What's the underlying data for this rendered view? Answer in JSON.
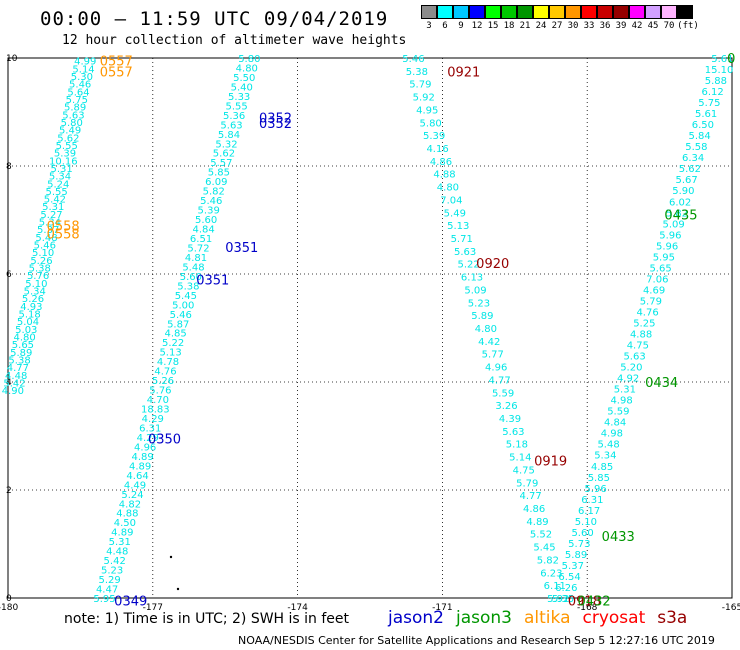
{
  "header": {
    "title": "00:00 – 11:59 UTC 09/04/2019",
    "subtitle": "12 hour collection of altimeter wave heights"
  },
  "colorbar": {
    "labels": [
      "3",
      "6",
      "9",
      "12",
      "15",
      "18",
      "21",
      "24",
      "27",
      "30",
      "33",
      "36",
      "39",
      "42",
      "45",
      "70",
      "(ft)"
    ],
    "colors": [
      "#8c8c8c",
      "#00ffff",
      "#00c8ff",
      "#0000ff",
      "#00ff00",
      "#00c800",
      "#009600",
      "#ffff00",
      "#ffc800",
      "#ff9600",
      "#ff0000",
      "#c80000",
      "#960000",
      "#ff00ff",
      "#d2a0ff",
      "#ffb4ff",
      "#000000"
    ]
  },
  "axes": {
    "x_ticks": [
      "-180",
      "-177",
      "-174",
      "-171",
      "-168",
      "-165"
    ],
    "y_ticks": [
      "0",
      "2",
      "4",
      "6",
      "8",
      "10"
    ]
  },
  "time_labels": [
    {
      "text": "0557",
      "color": "#ff9600",
      "lon": -178.1,
      "lat": 9.95
    },
    {
      "text": "0557",
      "color": "#ff9600",
      "lon": -178.1,
      "lat": 9.75
    },
    {
      "text": "0558",
      "color": "#ff9600",
      "lon": -179.2,
      "lat": 6.9
    },
    {
      "text": "0558",
      "color": "#ff9600",
      "lon": -179.2,
      "lat": 6.75
    },
    {
      "text": "0352",
      "color": "#0000c8",
      "lon": -174.8,
      "lat": 8.9
    },
    {
      "text": "0352",
      "color": "#0000c8",
      "lon": -174.8,
      "lat": 8.8
    },
    {
      "text": "0351",
      "color": "#0000c8",
      "lon": -175.5,
      "lat": 6.5
    },
    {
      "text": "0351",
      "color": "#0000c8",
      "lon": -176.1,
      "lat": 5.9
    },
    {
      "text": "0350",
      "color": "#0000c8",
      "lon": -177.1,
      "lat": 2.95
    },
    {
      "text": "0349",
      "color": "#0000c8",
      "lon": -177.8,
      "lat": -0.05
    },
    {
      "text": "0921",
      "color": "#960000",
      "lon": -170.9,
      "lat": 9.75
    },
    {
      "text": "0920",
      "color": "#960000",
      "lon": -170.3,
      "lat": 6.2
    },
    {
      "text": "0919",
      "color": "#960000",
      "lon": -169.1,
      "lat": 2.55
    },
    {
      "text": "0918",
      "color": "#960000",
      "lon": -168.4,
      "lat": -0.05
    },
    {
      "text": "0435",
      "color": "#009600",
      "lon": -166.4,
      "lat": 7.1
    },
    {
      "text": "0434",
      "color": "#009600",
      "lon": -166.8,
      "lat": 4.0
    },
    {
      "text": "0433",
      "color": "#009600",
      "lon": -167.7,
      "lat": 1.15
    },
    {
      "text": "0432",
      "color": "#009600",
      "lon": -168.2,
      "lat": -0.05
    },
    {
      "text": "0",
      "color": "#009600",
      "lon": -165.1,
      "lat": 10.0
    }
  ],
  "tracks": [
    {
      "name": "altika-1",
      "color": "#00e6e6",
      "lon_start": -179.9,
      "lat_start": 3.85,
      "lon_end": -178.4,
      "lat_end": 9.95,
      "values": [
        "4.90",
        "5.42",
        "4.48",
        "4.77",
        "5.38",
        "5.89",
        "5.65",
        "4.80",
        "5.03",
        "5.04",
        "5.18",
        "4.93",
        "5.26",
        "5.34",
        "5.10",
        "5.76",
        "5.38",
        "5.26",
        "5.10",
        "5.46",
        "5.48",
        "5.37",
        "5.34",
        "5.27",
        "5.31",
        "5.42",
        "5.55",
        "5.24",
        "5.34",
        "5.31",
        "10.16",
        "5.39",
        "5.55",
        "5.62",
        "5.49",
        "5.80",
        "5.63",
        "5.89",
        "5.75",
        "5.64",
        "5.46",
        "5.30",
        "5.14",
        "4.99"
      ]
    },
    {
      "name": "jason2-1",
      "color": "#00e6e6",
      "lon_start": -178.0,
      "lat_start": 0.0,
      "lon_end": -175.0,
      "lat_end": 10.0,
      "values": [
        "5.95",
        "4.47",
        "5.29",
        "5.23",
        "5.42",
        "4.48",
        "5.31",
        "4.89",
        "4.50",
        "4.88",
        "4.82",
        "5.24",
        "4.49",
        "4.64",
        "4.89",
        "4.89",
        "4.96",
        "4.29",
        "6.31",
        "4.29",
        "18.83",
        "4.70",
        "5.76",
        "5.26",
        "4.76",
        "4.78",
        "5.13",
        "5.22",
        "4.85",
        "5.87",
        "5.46",
        "5.00",
        "5.45",
        "5.38",
        "5.60",
        "5.48",
        "4.81",
        "5.72",
        "6.51",
        "4.84",
        "5.60",
        "5.39",
        "5.46",
        "5.82",
        "6.09",
        "5.85",
        "5.57",
        "5.62",
        "5.32",
        "5.84",
        "5.63",
        "5.36",
        "5.55",
        "5.33",
        "5.40",
        "5.50",
        "4.80",
        "5.80"
      ]
    },
    {
      "name": "cryosat-1",
      "color": "#00e6e6",
      "lon_start": -171.6,
      "lat_start": 10.0,
      "lon_end": -168.6,
      "lat_end": 0.0,
      "values": [
        "5.46",
        "5.38",
        "5.79",
        "5.92",
        "4.95",
        "5.80",
        "5.39",
        "4.16",
        "4.86",
        "4.88",
        "4.80",
        "7.04",
        "5.49",
        "5.13",
        "5.71",
        "5.63",
        "5.22",
        "6.13",
        "5.09",
        "5.23",
        "5.89",
        "4.80",
        "4.42",
        "5.77",
        "4.96",
        "4.77",
        "5.59",
        "3.26",
        "4.39",
        "5.63",
        "5.18",
        "5.14",
        "4.75",
        "5.79",
        "4.77",
        "4.86",
        "4.89",
        "5.52",
        "5.45",
        "5.82",
        "6.23",
        "6.11",
        "5.92"
      ]
    },
    {
      "name": "jason3-1",
      "color": "#00e6e6",
      "lon_start": -168.5,
      "lat_start": 0.0,
      "lon_end": -165.2,
      "lat_end": 10.0,
      "values": [
        "5.35",
        "6.26",
        "6.54",
        "5.37",
        "5.89",
        "5.73",
        "5.60",
        "5.10",
        "6.17",
        "6.31",
        "5.96",
        "5.85",
        "4.85",
        "5.34",
        "5.48",
        "4.98",
        "4.84",
        "5.59",
        "4.98",
        "5.31",
        "4.92",
        "5.20",
        "5.63",
        "4.75",
        "4.88",
        "5.25",
        "4.76",
        "5.79",
        "4.69",
        "7.06",
        "5.65",
        "5.95",
        "5.96",
        "5.96",
        "5.09",
        "5.82",
        "6.02",
        "5.90",
        "5.67",
        "5.62",
        "6.34",
        "5.58",
        "5.84",
        "6.50",
        "5.61",
        "5.75",
        "6.12",
        "5.88",
        "15.10",
        "5.61"
      ]
    }
  ],
  "footer": {
    "note": "note: 1) Time is in UTC; 2) SWH is in feet",
    "legend": [
      {
        "label": "jason2",
        "color": "#0000c8"
      },
      {
        "label": "jason3",
        "color": "#009600"
      },
      {
        "label": "altika",
        "color": "#ff9600"
      },
      {
        "label": "cryosat",
        "color": "#ff0000"
      },
      {
        "label": "s3a",
        "color": "#960000"
      }
    ],
    "credit": "NOAA/NESDIS Center for Satellite Applications and Research",
    "stamp": "Sep  5 12:27:16 UTC 2019"
  }
}
